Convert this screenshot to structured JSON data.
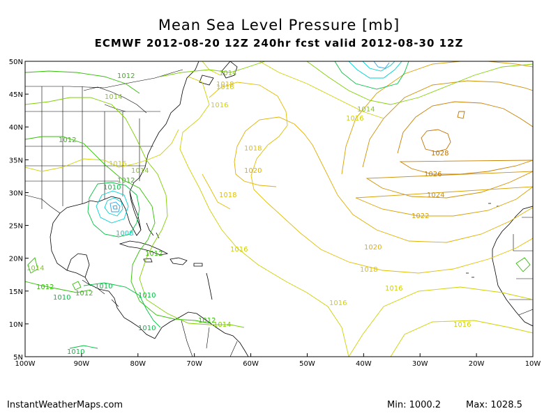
{
  "header": {
    "title": "Mean Sea Level Pressure [mb]",
    "subtitle": "ECMWF 2012-08-20 12Z 240hr fcst valid 2012-08-30 12Z"
  },
  "footer": {
    "source": "InstantWeatherMaps.com",
    "min": "Min: 1000.2",
    "max": "Max: 1028.5"
  },
  "axes": {
    "lon_labels": [
      "100W",
      "90W",
      "80W",
      "70W",
      "60W",
      "50W",
      "40W",
      "30W",
      "20W",
      "10W"
    ],
    "lat_labels": [
      "5N",
      "10N",
      "15N",
      "20N",
      "25N",
      "30N",
      "35N",
      "40N",
      "45N",
      "50N"
    ]
  },
  "isobar_labels": [
    "1012",
    "1014",
    "1016",
    "1014",
    "1012",
    "1010",
    "1008",
    "1012",
    "1014",
    "1016",
    "1018",
    "1016",
    "1018",
    "1020",
    "1018",
    "1016",
    "1016",
    "1014",
    "1016",
    "1018",
    "1020",
    "1022",
    "1024",
    "1026",
    "1028",
    "1016",
    "1016",
    "1012",
    "1010",
    "1010",
    "1010",
    "1010",
    "1012",
    "1014",
    "1014",
    "1012",
    "1012",
    "1010"
  ],
  "colors": {
    "1008": "#00d0d0",
    "1010": "#00c040",
    "1012": "#30c000",
    "1014": "#80d000",
    "1016": "#d0d000",
    "1018": "#e0c000",
    "1020": "#e0b000",
    "1022": "#d8a000",
    "1024": "#d09000",
    "1026": "#c88000",
    "1028": "#c07000"
  }
}
